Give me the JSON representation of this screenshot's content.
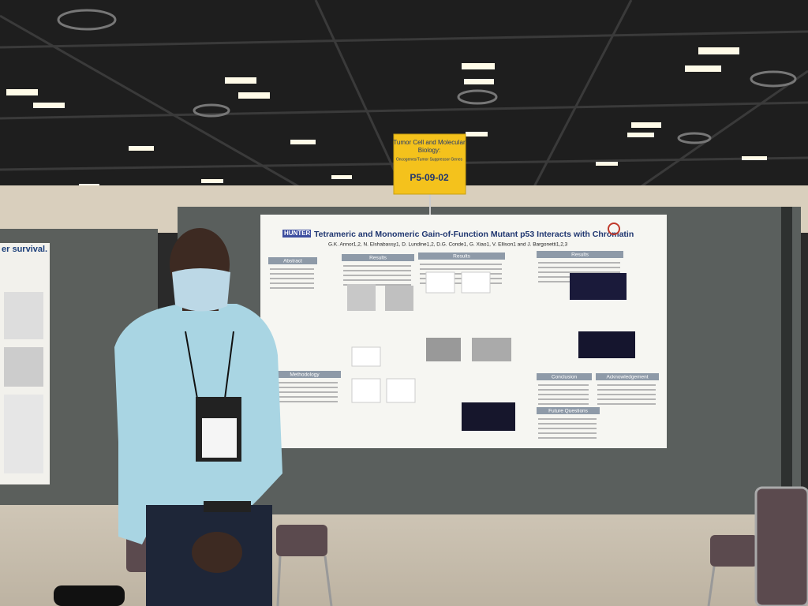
{
  "sign": {
    "lines": [
      "Tumor Cell and Molecular",
      "Biology:",
      "Oncogenes/Tumor Suppressor Genes"
    ],
    "code": "P5-09-02"
  },
  "poster": {
    "logo": "HUNTER",
    "title": "Tetrameric and Monomeric Gain-of-Function Mutant p53 Interacts with Chromatin",
    "authors": "G.K. Annor1,2, N. Elshabassy1, D. Lundine1,2, D.G. Conde1, G. Xiao1, V. Ellison1 and J. Bargonetti1,2,3",
    "sections": [
      "Abstract",
      "Results",
      "Results",
      "Results",
      "Methodology",
      "Conclusion",
      "Acknowledgement",
      "Future Questions"
    ]
  },
  "left_poster": {
    "title_fragment": "er survival."
  }
}
